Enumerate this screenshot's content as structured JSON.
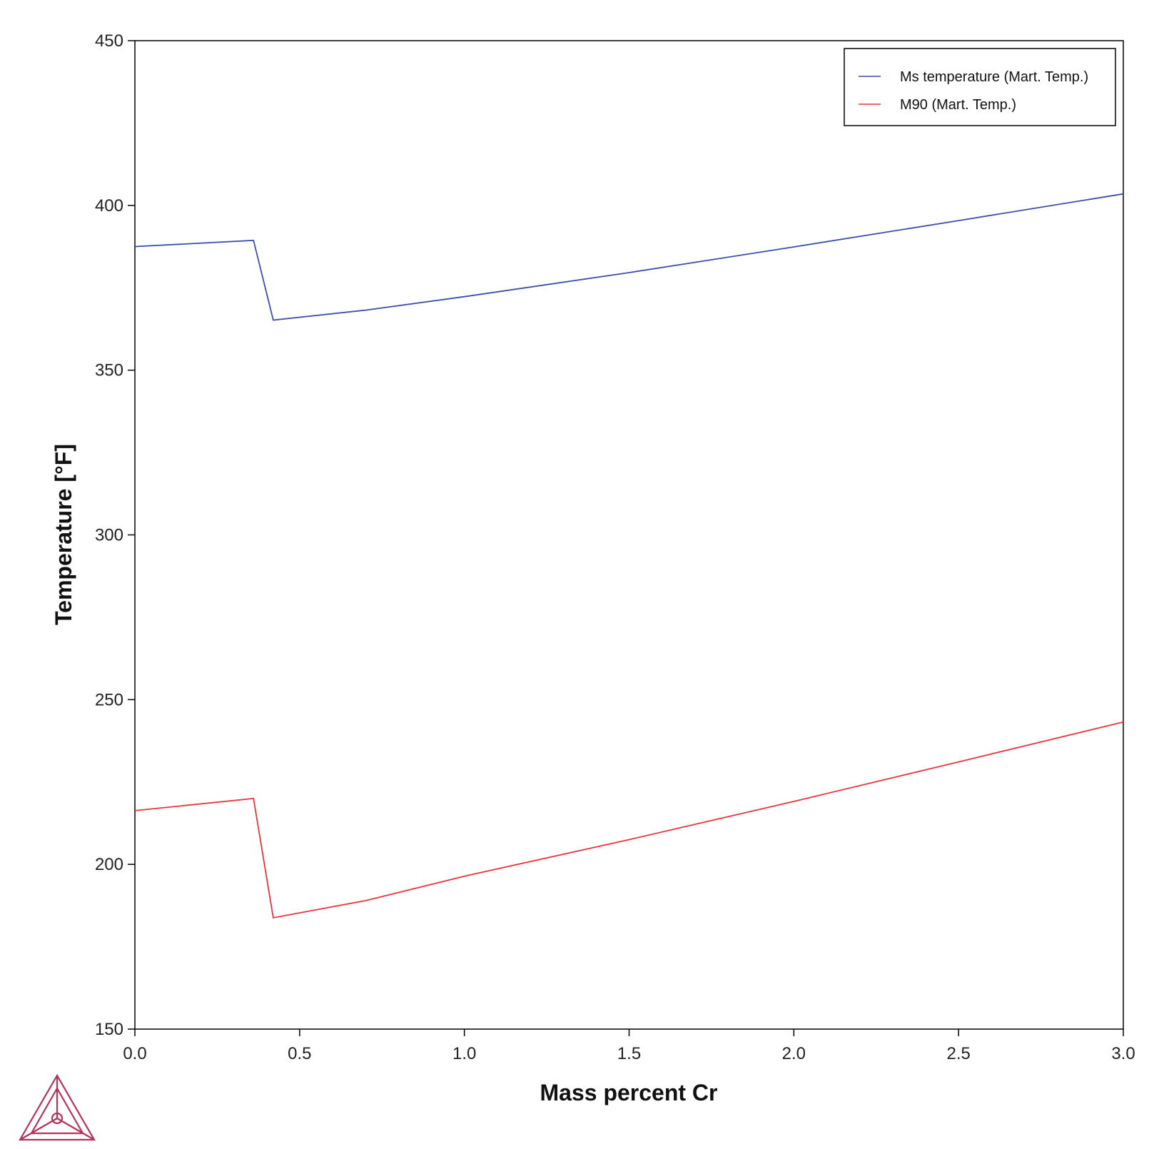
{
  "chart_data": {
    "type": "line",
    "title": "",
    "xlabel": "Mass percent Cr",
    "ylabel": "Temperature [°F]",
    "xlim": [
      0,
      3
    ],
    "ylim": [
      150,
      450
    ],
    "x_ticks": [
      "0.0",
      "0.5",
      "1.0",
      "1.5",
      "2.0",
      "2.5",
      "3.0"
    ],
    "x_tick_values": [
      0,
      0.5,
      1.0,
      1.5,
      2.0,
      2.5,
      3.0
    ],
    "y_ticks": [
      "150",
      "200",
      "250",
      "300",
      "350",
      "400",
      "450"
    ],
    "y_tick_values": [
      150,
      200,
      250,
      300,
      350,
      400,
      450
    ],
    "grid": false,
    "legend_position": "top-right",
    "series": [
      {
        "name": "Ms temperature (Mart. Temp.)",
        "color": "#3b4fa8",
        "points": [
          [
            0.0,
            387.5
          ],
          [
            0.36,
            389.4
          ],
          [
            0.42,
            365.2
          ],
          [
            0.7,
            368.2
          ],
          [
            1.0,
            372.3
          ],
          [
            1.5,
            379.6
          ],
          [
            2.0,
            387.4
          ],
          [
            2.5,
            395.4
          ],
          [
            3.0,
            403.5
          ]
        ]
      },
      {
        "name": "M90 (Mart. Temp.)",
        "color": "#e8343f",
        "points": [
          [
            0.0,
            216.3
          ],
          [
            0.36,
            220.0
          ],
          [
            0.42,
            183.8
          ],
          [
            0.7,
            189.0
          ],
          [
            1.0,
            196.4
          ],
          [
            1.5,
            207.5
          ],
          [
            2.0,
            219.1
          ],
          [
            2.5,
            231.1
          ],
          [
            3.0,
            243.2
          ]
        ]
      }
    ]
  },
  "logo": {
    "name": "thermo-calc-logo",
    "color": "#b5325a"
  }
}
